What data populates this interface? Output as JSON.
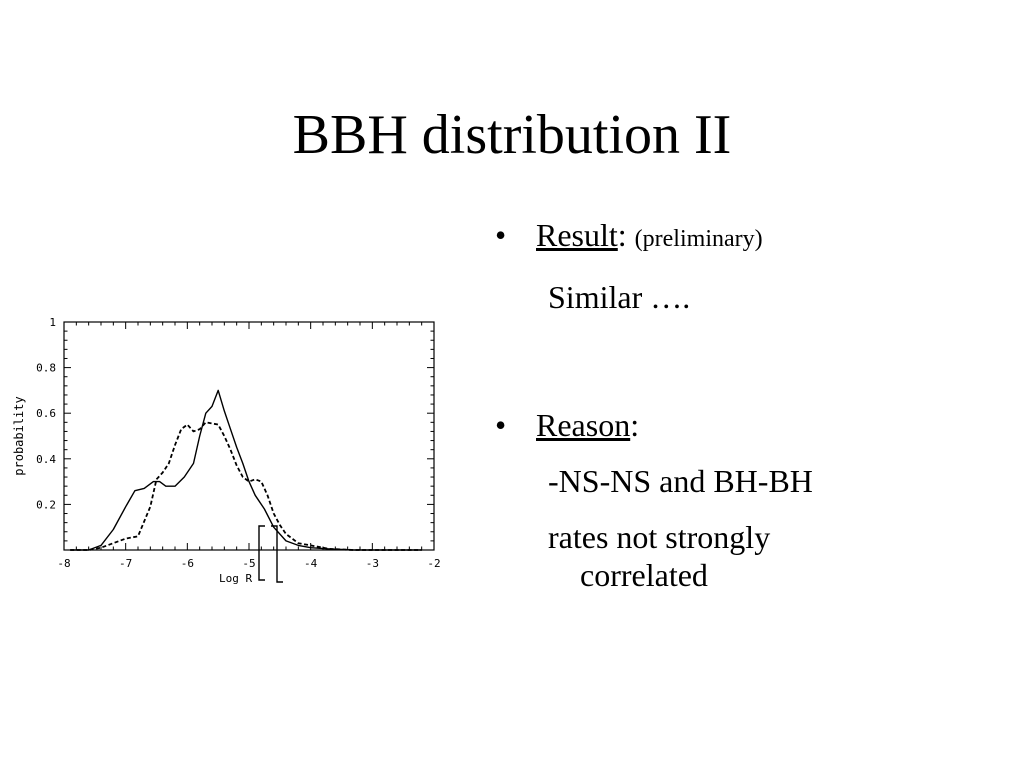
{
  "slide": {
    "title": "BBH distribution II"
  },
  "bullets": [
    {
      "symbol": "•",
      "heading": "Result",
      "colon": ":",
      "note": "(preliminary)",
      "lines": [
        "Similar …."
      ]
    },
    {
      "symbol": "•",
      "heading": "Reason",
      "colon": ":",
      "lines": [
        "-NS-NS and BH-BH",
        "rates not strongly",
        "correlated"
      ]
    }
  ],
  "chart_data": {
    "type": "line",
    "title": "",
    "xlabel": "Log R",
    "ylabel": "probability",
    "xlim": [
      -8,
      -2
    ],
    "ylim": [
      0,
      1
    ],
    "xticks": [
      "-8",
      "-7",
      "-6",
      "-5",
      "-4",
      "-3",
      "-2"
    ],
    "yticks": [
      "0.2",
      "0.4",
      "0.6",
      "0.8",
      "1"
    ],
    "grid": false,
    "series": [
      {
        "style": "solid",
        "x": [
          -7.9,
          -7.6,
          -7.4,
          -7.2,
          -7.0,
          -6.85,
          -6.7,
          -6.55,
          -6.45,
          -6.35,
          -6.2,
          -6.05,
          -5.9,
          -5.8,
          -5.7,
          -5.6,
          -5.5,
          -5.4,
          -5.3,
          -5.2,
          -5.1,
          -5.0,
          -4.9,
          -4.75,
          -4.6,
          -4.4,
          -4.2,
          -4.0,
          -3.7,
          -3.5,
          -3.3,
          -3.0,
          -2.2
        ],
        "y": [
          0.0,
          0.0,
          0.02,
          0.09,
          0.19,
          0.26,
          0.27,
          0.3,
          0.3,
          0.28,
          0.28,
          0.32,
          0.38,
          0.5,
          0.6,
          0.63,
          0.7,
          0.61,
          0.53,
          0.45,
          0.38,
          0.3,
          0.24,
          0.18,
          0.1,
          0.04,
          0.02,
          0.01,
          0.005,
          0.002,
          0.0,
          0.0,
          0.0
        ]
      },
      {
        "style": "dashed",
        "x": [
          -7.9,
          -7.6,
          -7.4,
          -7.2,
          -7.0,
          -6.8,
          -6.6,
          -6.5,
          -6.4,
          -6.3,
          -6.2,
          -6.1,
          -6.0,
          -5.9,
          -5.8,
          -5.7,
          -5.5,
          -5.4,
          -5.3,
          -5.2,
          -5.1,
          -5.0,
          -4.9,
          -4.8,
          -4.7,
          -4.6,
          -4.5,
          -4.4,
          -4.3,
          -4.2,
          -4.0,
          -3.7,
          -3.3,
          -2.2
        ],
        "y": [
          0.0,
          0.0,
          0.01,
          0.03,
          0.05,
          0.06,
          0.19,
          0.31,
          0.34,
          0.38,
          0.46,
          0.53,
          0.55,
          0.52,
          0.53,
          0.56,
          0.55,
          0.5,
          0.44,
          0.37,
          0.32,
          0.3,
          0.31,
          0.3,
          0.24,
          0.16,
          0.11,
          0.07,
          0.05,
          0.03,
          0.02,
          0.005,
          0.0,
          0.0
        ]
      }
    ]
  }
}
